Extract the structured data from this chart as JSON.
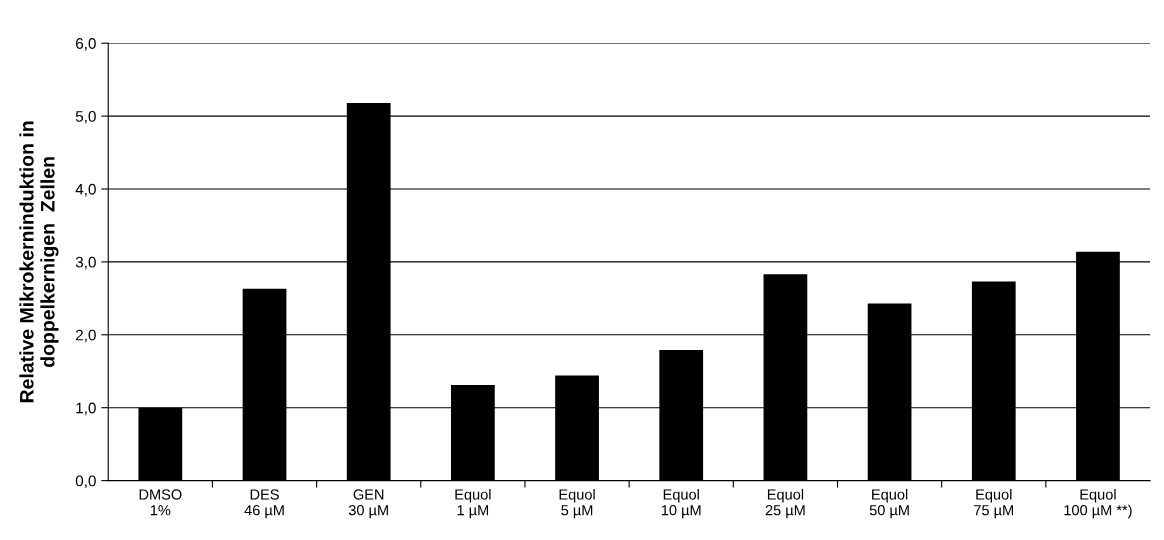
{
  "chart_data": {
    "type": "bar",
    "ylabel": "Relative Mikrokerninduktion in\ndoppelkernigen  Zellen",
    "categories": [
      "DMSO\n1%",
      "DES\n46 µM",
      "GEN\n30 µM",
      "Equol\n1 µM",
      "Equol\n5 µM",
      "Equol\n10 µM",
      "Equol\n25 µM",
      "Equol\n50 µM",
      "Equol\n75 µM",
      "Equol\n100 µM **)"
    ],
    "values": [
      1.0,
      2.63,
      5.18,
      1.31,
      1.44,
      1.79,
      2.83,
      2.43,
      2.73,
      3.14
    ],
    "color": "#000000",
    "ylim": [
      0,
      6
    ],
    "yticks": [
      {
        "value": 0,
        "label": "0,0"
      },
      {
        "value": 1,
        "label": "1,0"
      },
      {
        "value": 2,
        "label": "2,0"
      },
      {
        "value": 3,
        "label": "3,0"
      },
      {
        "value": 4,
        "label": "4,0"
      },
      {
        "value": 5,
        "label": "5,0"
      },
      {
        "value": 6,
        "label": "6,0"
      }
    ],
    "grid": "y",
    "legend": false
  }
}
